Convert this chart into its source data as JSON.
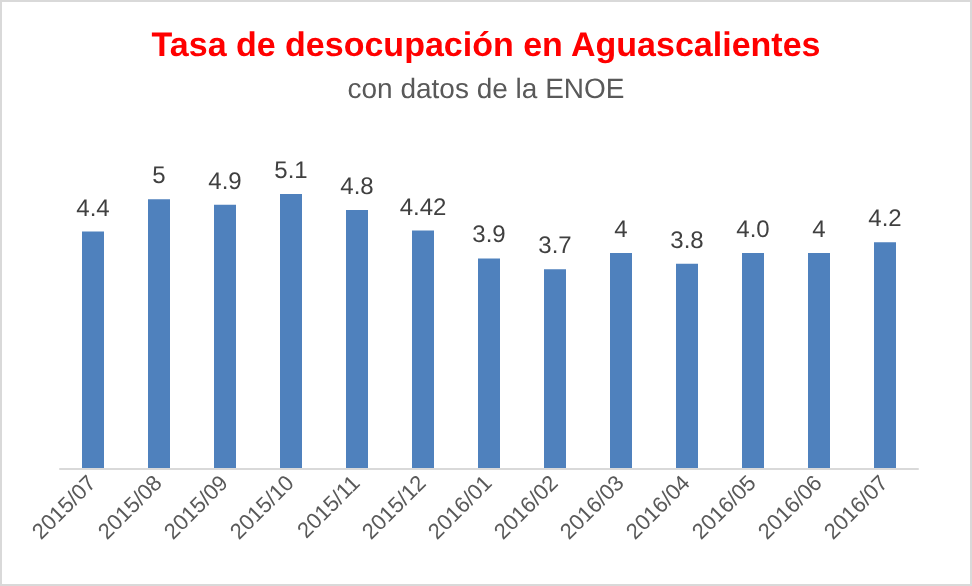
{
  "chart_data": {
    "type": "bar",
    "title": "Tasa de desocupación en Aguascalientes",
    "subtitle": "con datos de la ENOE",
    "categories": [
      "2015/07",
      "2015/08",
      "2015/09",
      "2015/10",
      "2015/11",
      "2015/12",
      "2016/01",
      "2016/02",
      "2016/03",
      "2016/04",
      "2016/05",
      "2016/06",
      "2016/07"
    ],
    "values": [
      4.4,
      5,
      4.9,
      5.1,
      4.8,
      4.42,
      3.9,
      3.7,
      4,
      3.8,
      4.0,
      4,
      4.2
    ],
    "value_labels": [
      "4.4",
      "5",
      "4.9",
      "5.1",
      "4.8",
      "4.42",
      "3.9",
      "3.7",
      "4",
      "3.8",
      "4.0",
      "4",
      "4.2"
    ],
    "color": "#4f81bd",
    "tick_labels": "x"
  }
}
